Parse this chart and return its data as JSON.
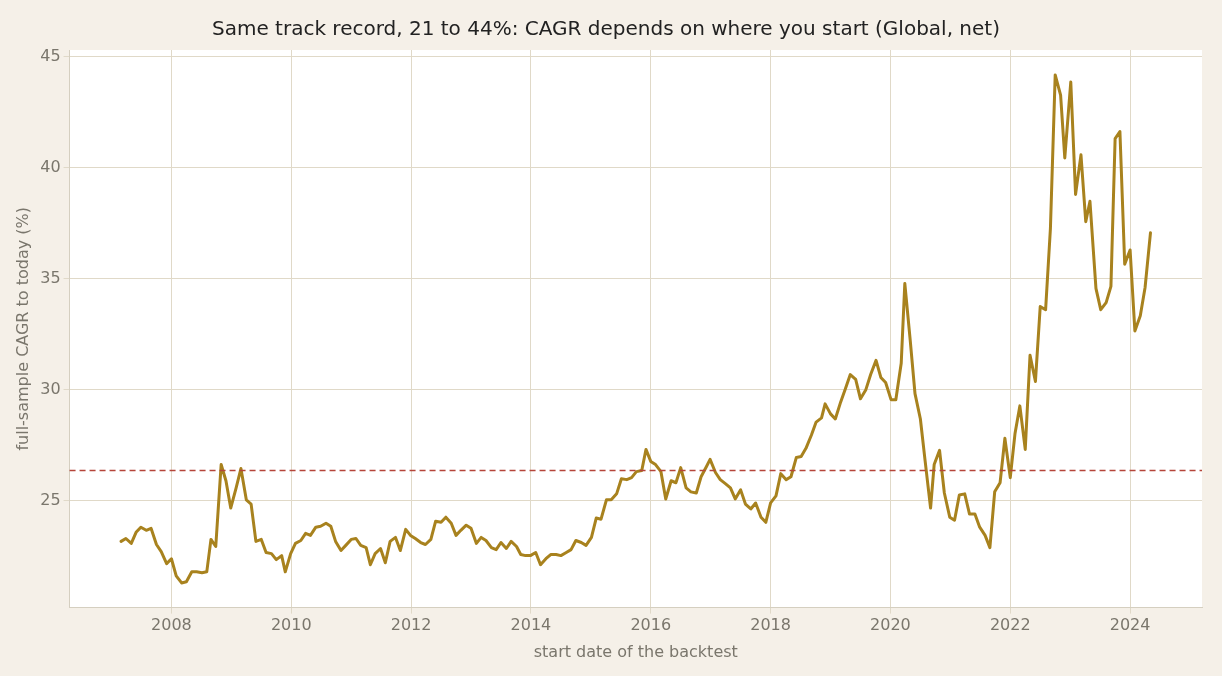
{
  "chart_data": {
    "type": "line",
    "title": "Same track record, 21 to 44%: CAGR depends on where you start (Global, net)",
    "xlabel": "start date of the backtest",
    "ylabel": "full-sample CAGR to today (%)",
    "x": [
      2007.16,
      2007.24,
      2007.33,
      2007.41,
      2007.49,
      2007.58,
      2007.66,
      2007.75,
      2007.83,
      2007.92,
      2008.0,
      2008.08,
      2008.17,
      2008.25,
      2008.34,
      2008.42,
      2008.51,
      2008.59,
      2008.66,
      2008.74,
      2008.83,
      2008.91,
      2008.99,
      2009.08,
      2009.16,
      2009.25,
      2009.33,
      2009.41,
      2009.5,
      2009.58,
      2009.67,
      2009.75,
      2009.84,
      2009.9,
      2009.99,
      2010.07,
      2010.16,
      2010.24,
      2010.32,
      2010.41,
      2010.49,
      2010.58,
      2010.66,
      2010.74,
      2010.83,
      2010.91,
      2011.0,
      2011.08,
      2011.16,
      2011.25,
      2011.32,
      2011.4,
      2011.49,
      2011.57,
      2011.65,
      2011.74,
      2011.82,
      2011.91,
      2011.99,
      2012.07,
      2012.16,
      2012.24,
      2012.33,
      2012.41,
      2012.5,
      2012.58,
      2012.67,
      2012.75,
      2012.83,
      2012.92,
      2013.0,
      2013.09,
      2013.17,
      2013.25,
      2013.34,
      2013.42,
      2013.5,
      2013.59,
      2013.67,
      2013.76,
      2013.83,
      2013.91,
      2013.99,
      2014.08,
      2014.16,
      2014.25,
      2014.33,
      2014.42,
      2014.5,
      2014.59,
      2014.67,
      2014.75,
      2014.84,
      2014.92,
      2015.01,
      2015.09,
      2015.17,
      2015.26,
      2015.34,
      2015.43,
      2015.51,
      2015.6,
      2015.68,
      2015.76,
      2015.85,
      2015.92,
      2016.0,
      2016.08,
      2016.17,
      2016.25,
      2016.34,
      2016.42,
      2016.5,
      2016.59,
      2016.67,
      2016.76,
      2016.84,
      2016.93,
      2016.99,
      2017.08,
      2017.16,
      2017.25,
      2017.33,
      2017.41,
      2017.5,
      2017.58,
      2017.67,
      2017.75,
      2017.84,
      2017.92,
      2018.0,
      2018.09,
      2018.17,
      2018.26,
      2018.34,
      2018.43,
      2018.51,
      2018.59,
      2018.68,
      2018.76,
      2018.85,
      2018.91,
      2019.0,
      2019.08,
      2019.17,
      2019.25,
      2019.33,
      2019.42,
      2019.5,
      2019.59,
      2019.67,
      2019.76,
      2019.84,
      2019.92,
      2020.01,
      2020.09,
      2020.18,
      2020.24,
      2020.33,
      2020.41,
      2020.5,
      2020.58,
      2020.67,
      2020.73,
      2020.82,
      2020.9,
      2020.99,
      2021.07,
      2021.15,
      2021.24,
      2021.32,
      2021.41,
      2021.49,
      2021.58,
      2021.66,
      2021.74,
      2021.83,
      2021.91,
      2022.0,
      2022.08,
      2022.16,
      2022.25,
      2022.33,
      2022.42,
      2022.5,
      2022.59,
      2022.67,
      2022.75,
      2022.84,
      2022.91,
      2023.01,
      2023.09,
      2023.18,
      2023.26,
      2023.33,
      2023.43,
      2023.51,
      2023.6,
      2023.68,
      2023.75,
      2023.83,
      2023.91,
      2024.0,
      2024.08,
      2024.17,
      2024.25,
      2024.34
    ],
    "series": [
      {
        "color": "#a8821e",
        "values": [
          23.18,
          23.31,
          23.09,
          23.59,
          23.82,
          23.68,
          23.77,
          23.04,
          22.72,
          22.18,
          22.4,
          21.63,
          21.31,
          21.36,
          21.81,
          21.81,
          21.77,
          21.81,
          23.27,
          22.95,
          26.64,
          25.91,
          24.68,
          25.59,
          26.46,
          25.05,
          24.86,
          23.18,
          23.27,
          22.68,
          22.63,
          22.36,
          22.54,
          21.81,
          22.63,
          23.09,
          23.22,
          23.54,
          23.45,
          23.82,
          23.86,
          24.0,
          23.86,
          23.18,
          22.77,
          23.0,
          23.27,
          23.31,
          23.0,
          22.9,
          22.13,
          22.63,
          22.86,
          22.22,
          23.18,
          23.36,
          22.77,
          23.72,
          23.45,
          23.31,
          23.13,
          23.04,
          23.27,
          24.09,
          24.04,
          24.27,
          24.0,
          23.45,
          23.68,
          23.91,
          23.77,
          23.09,
          23.36,
          23.22,
          22.9,
          22.81,
          23.13,
          22.86,
          23.18,
          22.95,
          22.59,
          22.54,
          22.54,
          22.68,
          22.13,
          22.4,
          22.59,
          22.59,
          22.54,
          22.68,
          22.81,
          23.22,
          23.13,
          23.0,
          23.36,
          24.23,
          24.18,
          25.05,
          25.05,
          25.32,
          26.0,
          25.96,
          26.05,
          26.32,
          26.37,
          27.32,
          26.78,
          26.64,
          26.32,
          25.09,
          25.91,
          25.82,
          26.5,
          25.59,
          25.41,
          25.36,
          26.09,
          26.55,
          26.87,
          26.28,
          25.96,
          25.77,
          25.59,
          25.09,
          25.5,
          24.86,
          24.64,
          24.91,
          24.27,
          24.04,
          24.91,
          25.23,
          26.23,
          25.96,
          26.09,
          26.96,
          27.0,
          27.37,
          27.96,
          28.55,
          28.74,
          29.37,
          28.92,
          28.69,
          29.46,
          30.06,
          30.69,
          30.47,
          29.6,
          30.01,
          30.69,
          31.33,
          30.56,
          30.33,
          29.56,
          29.56,
          31.2,
          34.79,
          32.24,
          29.83,
          28.69,
          26.78,
          24.68,
          26.64,
          27.28,
          25.36,
          24.27,
          24.13,
          25.27,
          25.32,
          24.41,
          24.41,
          23.82,
          23.45,
          22.9,
          25.41,
          25.82,
          27.82,
          26.05,
          28.05,
          29.28,
          27.32,
          31.56,
          30.38,
          33.75,
          33.61,
          37.26,
          44.18,
          43.27,
          40.44,
          43.86,
          38.8,
          40.58,
          37.57,
          38.49,
          34.57,
          33.61,
          33.93,
          34.66,
          41.31,
          41.63,
          35.66,
          36.3,
          32.65,
          33.34,
          34.61,
          37.07
        ]
      }
    ],
    "xlim": [
      2006.3,
      2025.2
    ],
    "xticks": [
      2008,
      2010,
      2012,
      2014,
      2016,
      2018,
      2020,
      2022,
      2024
    ],
    "ylim": [
      20.2,
      45.3
    ],
    "yticks": [
      25,
      30,
      35,
      40,
      45
    ],
    "ref_lines": [
      {
        "axis": "y",
        "value": 26.37,
        "color": "#b5453a",
        "line_style": "dashed"
      }
    ],
    "grid": true,
    "legend": false,
    "marker": "none",
    "line_style": "solid"
  }
}
